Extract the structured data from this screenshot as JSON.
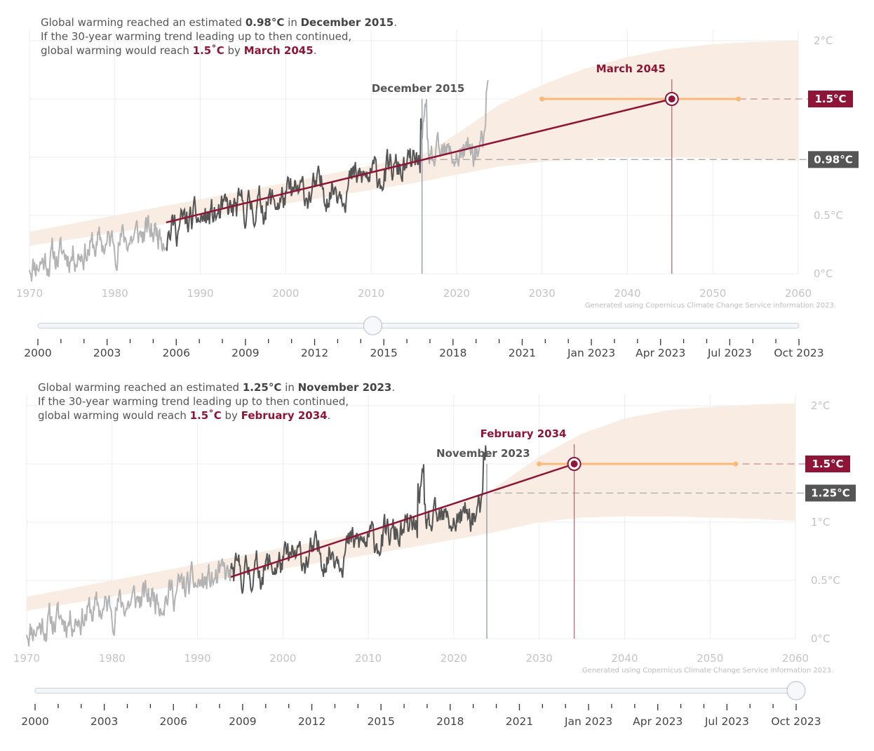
{
  "colors": {
    "accent": "#8e1537",
    "band": "#f9ece2",
    "observed_highlight": "#555555",
    "observed_context": "#b3b3b3",
    "orange": "#f9b978",
    "grey_badge": "#555555",
    "vertical_line": "#8c97a8"
  },
  "chart_data": [
    {
      "type": "line",
      "subtitle": {
        "prefix": "Global warming reached an estimated ",
        "value": "0.98°C",
        "mid": " in ",
        "date": "December 2015",
        "end": ".",
        "line2": "If the 30-year warming trend leading up to then continued,",
        "line3_prefix": "global warming would reach ",
        "target": "1.5˚C",
        "line3_mid": " by ",
        "target_date": "March 2045",
        "line3_end": "."
      },
      "xlim": [
        1970,
        2060
      ],
      "ylim": [
        -0.1,
        2.0
      ],
      "x_ticks": [
        "1970",
        "1980",
        "1990",
        "2000",
        "2010",
        "2020",
        "2030",
        "2040",
        "2050",
        "2060"
      ],
      "y_ticks": [
        {
          "value": 0,
          "label": "0°C"
        },
        {
          "value": 0.5,
          "label": "0.5°C"
        },
        {
          "value": 2,
          "label": "2°C"
        }
      ],
      "badges": [
        {
          "value": 1.5,
          "label": "1.5°C",
          "style": "accent"
        },
        {
          "value": 0.98,
          "label": "0.98°C",
          "style": "grey"
        }
      ],
      "current_year": 2015.96,
      "current_label": "December 2015",
      "current_value": 0.98,
      "target_year": 2045.2,
      "target_label": "March 2045",
      "target_value": 1.5,
      "trend": {
        "start_year": 1986,
        "start_value": 0.44,
        "end_year": 2045.2,
        "end_value": 1.5
      },
      "highlight_window": [
        1986,
        2015.96
      ],
      "range_bar": {
        "from_year": 2030,
        "to_year": 2053
      },
      "uncertainty_band": {
        "x": [
          1970,
          1980,
          1990,
          2000,
          2010,
          2015.96,
          2020,
          2025,
          2030,
          2035,
          2040,
          2045,
          2050,
          2055,
          2060
        ],
        "lower": [
          0.24,
          0.35,
          0.48,
          0.6,
          0.72,
          0.79,
          0.85,
          0.92,
          0.96,
          0.99,
          1.0,
          1.0,
          0.99,
          0.98,
          0.97
        ],
        "upper": [
          0.36,
          0.5,
          0.64,
          0.78,
          0.93,
          1.02,
          1.2,
          1.45,
          1.62,
          1.76,
          1.86,
          1.93,
          1.97,
          1.99,
          2.0
        ]
      },
      "observed": {
        "start_year": 1970,
        "end_year": 2023.8,
        "step": 0.0833,
        "seed": 11
      },
      "credit": "Generated using Copernicus Climate Change Service information 2023.",
      "slider": {
        "ticks": [
          "2000",
          "2003",
          "2006",
          "2009",
          "2012",
          "2015",
          "2018",
          "2021",
          "Jan 2023",
          "Apr 2023",
          "Jul 2023",
          "Oct 2023"
        ],
        "handle_fraction": 0.44
      }
    },
    {
      "type": "line",
      "subtitle": {
        "prefix": "Global warming reached an estimated ",
        "value": "1.25°C",
        "mid": " in ",
        "date": "November 2023",
        "end": ".",
        "line2": "If the 30-year warming trend leading up to then continued,",
        "line3_prefix": "global warming would reach ",
        "target": "1.5˚C",
        "line3_mid": " by ",
        "target_date": "February 2034",
        "line3_end": "."
      },
      "xlim": [
        1970,
        2060
      ],
      "ylim": [
        -0.1,
        2.0
      ],
      "x_ticks": [
        "1970",
        "1980",
        "1990",
        "2000",
        "2010",
        "2020",
        "2030",
        "2040",
        "2050",
        "2060"
      ],
      "y_ticks": [
        {
          "value": 0,
          "label": "0°C"
        },
        {
          "value": 0.5,
          "label": "0.5°C"
        },
        {
          "value": 1,
          "label": "1°C"
        },
        {
          "value": 2,
          "label": "2°C"
        }
      ],
      "badges": [
        {
          "value": 1.5,
          "label": "1.5°C",
          "style": "accent"
        },
        {
          "value": 1.25,
          "label": "1.25°C",
          "style": "grey"
        }
      ],
      "current_year": 2023.87,
      "current_label": "November 2023",
      "current_value": 1.25,
      "target_year": 2034.1,
      "target_label": "February 2034",
      "target_value": 1.5,
      "trend": {
        "start_year": 1993.9,
        "start_value": 0.53,
        "end_year": 2034.1,
        "end_value": 1.5
      },
      "highlight_window": [
        1993.9,
        2023.87
      ],
      "range_bar": {
        "from_year": 2030,
        "to_year": 2053
      },
      "uncertainty_band": {
        "x": [
          1970,
          1980,
          1990,
          2000,
          2010,
          2023.87,
          2030,
          2035,
          2040,
          2045,
          2050,
          2055,
          2060
        ],
        "lower": [
          0.24,
          0.36,
          0.48,
          0.6,
          0.72,
          0.9,
          1.0,
          1.04,
          1.05,
          1.05,
          1.04,
          1.03,
          1.01
        ],
        "upper": [
          0.36,
          0.5,
          0.64,
          0.78,
          0.92,
          1.25,
          1.56,
          1.76,
          1.89,
          1.96,
          1.99,
          2.01,
          2.02
        ]
      },
      "observed": {
        "start_year": 1970,
        "end_year": 2023.87,
        "step": 0.0833,
        "seed": 11
      },
      "credit": "Generated using Copernicus Climate Change Service information 2023.",
      "slider": {
        "ticks": [
          "2000",
          "2003",
          "2006",
          "2009",
          "2012",
          "2015",
          "2018",
          "2021",
          "Jan 2023",
          "Apr 2023",
          "Jul 2023",
          "Oct 2023"
        ],
        "handle_fraction": 1.0
      }
    }
  ]
}
